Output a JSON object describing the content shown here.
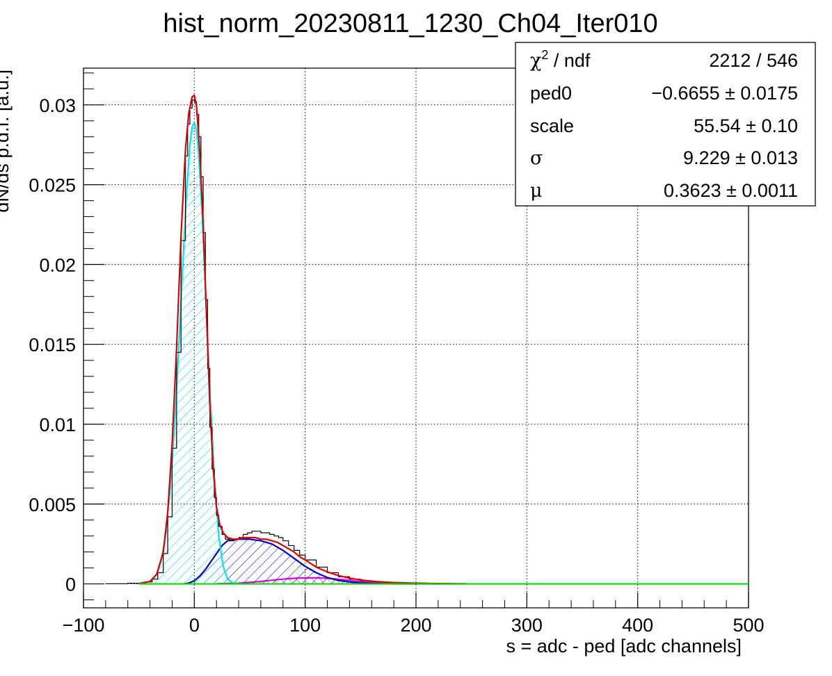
{
  "chart_data": {
    "type": "line",
    "title": "hist_norm_20230811_1230_Ch04_Iter010",
    "xlabel": "s = adc - ped [adc channels]",
    "ylabel": "dN/ds p.d.f. [a.u.]",
    "xlim": [
      -100,
      500
    ],
    "ylim": [
      -0.0015,
      0.0323
    ],
    "grid": true,
    "x_ticks": [
      -100,
      0,
      100,
      200,
      300,
      400,
      500
    ],
    "x_tick_labels": [
      "−100",
      "0",
      "100",
      "200",
      "300",
      "400",
      "500"
    ],
    "y_ticks": [
      0,
      0.005,
      0.01,
      0.015,
      0.02,
      0.025,
      0.03
    ],
    "y_tick_labels": [
      "0",
      "0.005",
      "0.01",
      "0.015",
      "0.02",
      "0.025",
      "0.03"
    ],
    "legend_position": "top-right",
    "stats_box": {
      "rows": [
        {
          "label": "χ",
          "label_sup": "2",
          "label_suffix": " / ndf",
          "value": "2212 / 546"
        },
        {
          "label": "ped0",
          "label_sup": "",
          "label_suffix": "",
          "value": "−0.6655 ± 0.0175"
        },
        {
          "label": "scale",
          "label_sup": "",
          "label_suffix": "",
          "value": "55.54 ± 0.10"
        },
        {
          "label": "σ",
          "label_sup": "",
          "label_suffix": "",
          "value": "9.229 ± 0.013"
        },
        {
          "label": "μ",
          "label_sup": "",
          "label_suffix": "",
          "value": "0.3623 ± 0.0011"
        }
      ]
    },
    "series": [
      {
        "kind": "histogram",
        "color": "#000000",
        "x": [
          -80,
          -60,
          -45,
          -38,
          -33,
          -28,
          -24,
          -20,
          -16,
          -12,
          -8,
          -6,
          -4,
          -2,
          0,
          2,
          4,
          6,
          8,
          10,
          12,
          14,
          16,
          18,
          20,
          22,
          25,
          28,
          32,
          36,
          40,
          44,
          48,
          52,
          56,
          60,
          64,
          68,
          72,
          76,
          80,
          85,
          90,
          95,
          100,
          110,
          120,
          130,
          140,
          150,
          160,
          170,
          180,
          190,
          200,
          210,
          220,
          230,
          240,
          245
        ],
        "y": [
          1e-05,
          4e-05,
          0.00012,
          0.0003,
          0.0007,
          0.0019,
          0.0042,
          0.0085,
          0.0145,
          0.0215,
          0.0268,
          0.0288,
          0.0298,
          0.0303,
          0.0302,
          0.0294,
          0.028,
          0.0255,
          0.022,
          0.0178,
          0.0135,
          0.0098,
          0.0072,
          0.0054,
          0.0043,
          0.0036,
          0.0031,
          0.0028,
          0.0027,
          0.0028,
          0.0029,
          0.0031,
          0.0032,
          0.0033,
          0.0033,
          0.0032,
          0.0032,
          0.0031,
          0.003,
          0.0029,
          0.0027,
          0.0024,
          0.0021,
          0.0018,
          0.0015,
          0.00105,
          0.0007,
          0.00045,
          0.0003,
          0.0002,
          0.00015,
          0.0001,
          8e-05,
          6e-05,
          5e-05,
          4e-05,
          3e-05,
          2e-05,
          1e-05,
          1e-05
        ]
      },
      {
        "kind": "fit-total",
        "color": "#e00000",
        "x": [
          -50,
          -40,
          -34,
          -28,
          -24,
          -20,
          -16,
          -12,
          -8,
          -5,
          -2,
          0,
          2,
          5,
          8,
          11,
          14,
          17,
          20,
          23,
          26,
          30,
          35,
          40,
          45,
          50,
          55,
          60,
          65,
          70,
          75,
          80,
          85,
          90,
          95,
          100,
          110,
          120,
          130,
          140,
          150,
          160,
          170,
          180,
          200,
          220,
          245
        ],
        "y": [
          2e-05,
          0.00015,
          0.0006,
          0.002,
          0.0045,
          0.0088,
          0.0148,
          0.0218,
          0.0272,
          0.0295,
          0.0305,
          0.0306,
          0.0299,
          0.027,
          0.0225,
          0.0168,
          0.0112,
          0.0072,
          0.0048,
          0.0037,
          0.0032,
          0.0029,
          0.0028,
          0.0028,
          0.0029,
          0.0029,
          0.0029,
          0.0028,
          0.0028,
          0.0027,
          0.0026,
          0.0024,
          0.0022,
          0.002,
          0.0017,
          0.0015,
          0.00105,
          0.00075,
          0.00052,
          0.00036,
          0.00025,
          0.00017,
          0.00012,
          8e-05,
          4e-05,
          2e-05,
          1e-05
        ]
      },
      {
        "kind": "pedestal-gaussian",
        "color": "#00e5ee",
        "fill": "hatched",
        "x": [
          -50,
          -40,
          -34,
          -30,
          -26,
          -22,
          -18,
          -14,
          -10,
          -7,
          -4,
          -2,
          0,
          2,
          4,
          7,
          10,
          14,
          18,
          22,
          26,
          30,
          35,
          40,
          45
        ],
        "y": [
          2e-05,
          0.00015,
          0.0006,
          0.0014,
          0.003,
          0.0058,
          0.0098,
          0.0148,
          0.0205,
          0.0245,
          0.0275,
          0.0286,
          0.0289,
          0.0284,
          0.0268,
          0.0232,
          0.0185,
          0.0122,
          0.0068,
          0.003,
          0.0011,
          0.0003,
          5e-05,
          1e-05,
          0.0
        ]
      },
      {
        "kind": "one-photoelectron",
        "color": "#0000cc",
        "fill": "hatched",
        "x": [
          -10,
          -5,
          0,
          5,
          10,
          15,
          20,
          25,
          30,
          40,
          50,
          60,
          70,
          80,
          90,
          100,
          110,
          120,
          130,
          140,
          150,
          160,
          170,
          180,
          200,
          220
        ],
        "y": [
          0.0,
          5e-05,
          0.0002,
          0.0005,
          0.0009,
          0.0014,
          0.0019,
          0.0024,
          0.0027,
          0.0028,
          0.0028,
          0.0027,
          0.0025,
          0.0021,
          0.0016,
          0.0011,
          0.0007,
          0.0004,
          0.00022,
          0.00012,
          6e-05,
          3e-05,
          1e-05,
          0.0,
          0.0,
          0.0
        ]
      },
      {
        "kind": "two-photoelectron",
        "color": "#e000e0",
        "fill": "hatched",
        "x": [
          20,
          40,
          60,
          70,
          80,
          90,
          100,
          110,
          120,
          130,
          140,
          150,
          160,
          170,
          180,
          200,
          220,
          245
        ],
        "y": [
          1e-05,
          5e-05,
          0.00015,
          0.00023,
          0.0003,
          0.00035,
          0.00038,
          0.00038,
          0.00035,
          0.00029,
          0.00022,
          0.00015,
          0.0001,
          6e-05,
          3e-05,
          1e-05,
          0.0,
          0.0
        ]
      },
      {
        "kind": "baseline",
        "color": "#00dd00",
        "x": [
          -50,
          500
        ],
        "y": [
          0.0,
          0.0
        ]
      }
    ]
  }
}
